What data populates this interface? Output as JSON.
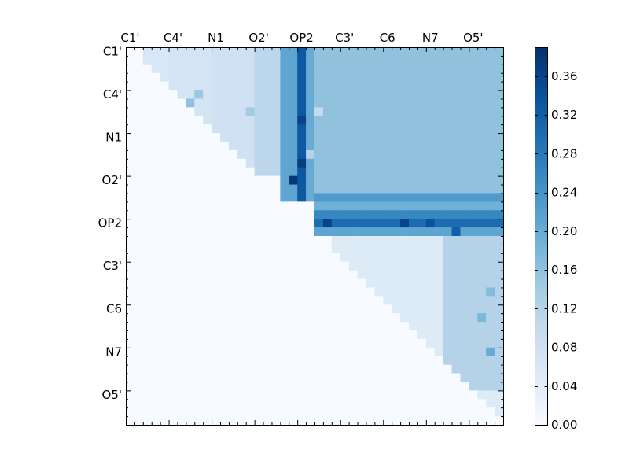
{
  "chart_data": {
    "type": "heatmap",
    "title": "",
    "xlabel": "",
    "ylabel": "",
    "rows": 44,
    "cols": 44,
    "triangle": "upper",
    "colormap": "Blues",
    "vmin": 0.0,
    "vmax": 0.39,
    "x_ticks": [
      {
        "label": "C1'",
        "index": 0
      },
      {
        "label": "C4'",
        "index": 5
      },
      {
        "label": "N1",
        "index": 10
      },
      {
        "label": "O2'",
        "index": 15
      },
      {
        "label": "OP2",
        "index": 20
      },
      {
        "label": "C3'",
        "index": 25
      },
      {
        "label": "C6",
        "index": 30
      },
      {
        "label": "N7",
        "index": 35
      },
      {
        "label": "O5'",
        "index": 40
      }
    ],
    "y_ticks": [
      {
        "label": "C1'",
        "index": 0
      },
      {
        "label": "C4'",
        "index": 5
      },
      {
        "label": "N1",
        "index": 10
      },
      {
        "label": "O2'",
        "index": 15
      },
      {
        "label": "OP2",
        "index": 20
      },
      {
        "label": "C3'",
        "index": 25
      },
      {
        "label": "C6",
        "index": 30
      },
      {
        "label": "N7",
        "index": 35
      },
      {
        "label": "O5'",
        "index": 40
      }
    ],
    "colorbar": {
      "ticks": [
        {
          "label": "0.00",
          "value": 0.0
        },
        {
          "label": "0.04",
          "value": 0.04
        },
        {
          "label": "0.08",
          "value": 0.08
        },
        {
          "label": "0.12",
          "value": 0.12
        },
        {
          "label": "0.16",
          "value": 0.16
        },
        {
          "label": "0.20",
          "value": 0.2
        },
        {
          "label": "0.24",
          "value": 0.24
        },
        {
          "label": "0.28",
          "value": 0.28
        },
        {
          "label": "0.32",
          "value": 0.32
        },
        {
          "label": "0.36",
          "value": 0.36
        }
      ]
    },
    "blocks": [
      {
        "rows": [
          0,
          6
        ],
        "cols": [
          2,
          5
        ],
        "value": 0.06
      },
      {
        "rows": [
          0,
          11
        ],
        "cols": [
          5,
          10
        ],
        "value": 0.07
      },
      {
        "rows": [
          0,
          14
        ],
        "cols": [
          10,
          15
        ],
        "value": 0.08
      },
      {
        "rows": [
          0,
          15
        ],
        "cols": [
          15,
          18
        ],
        "value": 0.11
      },
      {
        "rows": [
          0,
          18
        ],
        "cols": [
          18,
          20
        ],
        "value": 0.21
      },
      {
        "rows": [
          0,
          18
        ],
        "cols": [
          20,
          21
        ],
        "value": 0.33
      },
      {
        "rows": [
          0,
          18
        ],
        "cols": [
          21,
          22
        ],
        "value": 0.2
      },
      {
        "rows": [
          0,
          17
        ],
        "cols": [
          22,
          44
        ],
        "value": 0.16
      },
      {
        "rows": [
          17,
          18
        ],
        "cols": [
          22,
          44
        ],
        "value": 0.23
      },
      {
        "rows": [
          18,
          19
        ],
        "cols": [
          22,
          44
        ],
        "value": 0.19
      },
      {
        "rows": [
          19,
          20
        ],
        "cols": [
          22,
          44
        ],
        "value": 0.26
      },
      {
        "rows": [
          20,
          21
        ],
        "cols": [
          22,
          44
        ],
        "value": 0.3
      },
      {
        "rows": [
          21,
          22
        ],
        "cols": [
          22,
          44
        ],
        "value": 0.21
      },
      {
        "rows": [
          22,
          44
        ],
        "cols": [
          24,
          44
        ],
        "value": 0.05
      },
      {
        "rows": [
          22,
          40
        ],
        "cols": [
          37,
          44
        ],
        "value": 0.12
      }
    ],
    "overrides": [
      {
        "row": 8,
        "col": 20,
        "value": 0.36
      },
      {
        "row": 13,
        "col": 20,
        "value": 0.37
      },
      {
        "row": 15,
        "col": 19,
        "value": 0.38
      },
      {
        "row": 20,
        "col": 23,
        "value": 0.36
      },
      {
        "row": 20,
        "col": 32,
        "value": 0.36
      },
      {
        "row": 20,
        "col": 35,
        "value": 0.34
      },
      {
        "row": 21,
        "col": 38,
        "value": 0.32
      },
      {
        "row": 7,
        "col": 22,
        "value": 0.1
      },
      {
        "row": 12,
        "col": 21,
        "value": 0.12
      },
      {
        "row": 6,
        "col": 7,
        "value": 0.16
      },
      {
        "row": 5,
        "col": 8,
        "value": 0.15
      },
      {
        "row": 7,
        "col": 14,
        "value": 0.14
      },
      {
        "row": 35,
        "col": 42,
        "value": 0.2
      },
      {
        "row": 31,
        "col": 41,
        "value": 0.18
      },
      {
        "row": 28,
        "col": 42,
        "value": 0.17
      }
    ]
  }
}
